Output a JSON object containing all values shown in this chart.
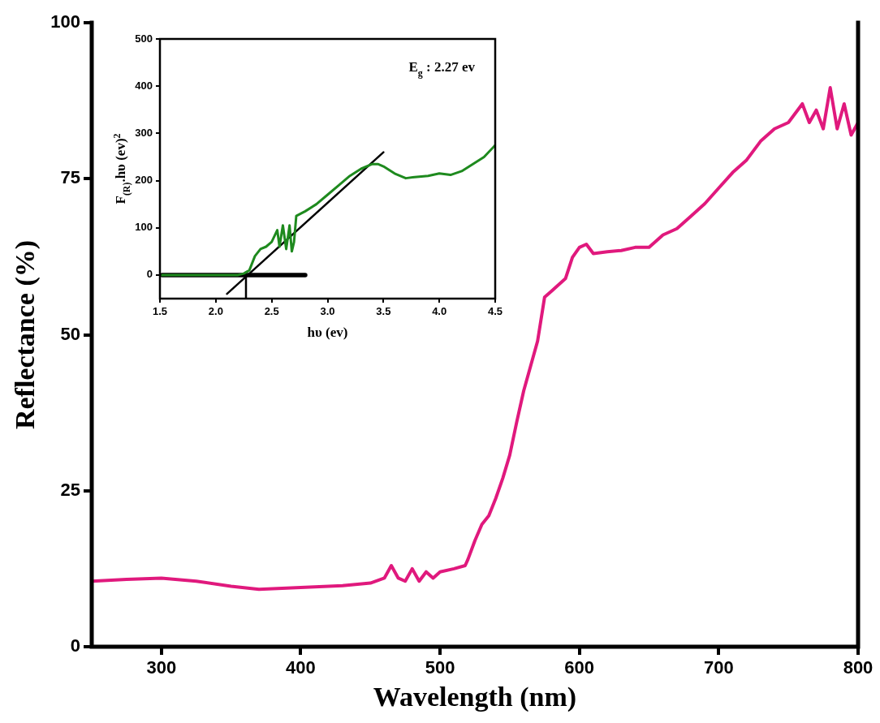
{
  "chart_data": [
    {
      "type": "line",
      "xlabel": "Wavelength (nm)",
      "ylabel": "Reflectance (%)",
      "xlim": [
        250,
        800
      ],
      "xticks": [
        300,
        400,
        500,
        600,
        700,
        800
      ],
      "ylim": [
        0,
        100
      ],
      "yticks": [
        0,
        25,
        50,
        75,
        100
      ],
      "x": [
        250,
        275,
        300,
        325,
        350,
        370,
        400,
        430,
        450,
        460,
        465,
        470,
        475,
        480,
        485,
        490,
        495,
        500,
        510,
        518,
        520,
        525,
        530,
        535,
        540,
        545,
        550,
        555,
        560,
        565,
        570,
        575,
        580,
        590,
        595,
        600,
        605,
        610,
        620,
        630,
        640,
        650,
        660,
        670,
        680,
        690,
        700,
        710,
        720,
        730,
        740,
        750,
        760,
        765,
        770,
        775,
        780,
        785,
        790,
        795,
        800
      ],
      "series": [
        {
          "color": "#e0197d",
          "values": [
            10.5,
            10.8,
            11,
            10.5,
            9.7,
            9.2,
            9.5,
            9.8,
            10.2,
            11,
            13,
            11,
            10.5,
            12.5,
            10.5,
            12,
            11,
            12,
            12.5,
            13,
            14,
            17,
            19.6,
            21,
            23.8,
            27,
            30.7,
            36,
            41,
            45,
            49,
            56,
            57,
            59,
            62.4,
            64,
            64.5,
            63,
            63.3,
            63.5,
            64,
            64,
            66,
            67,
            69,
            71,
            73.5,
            76,
            78,
            81,
            83,
            84,
            87,
            84,
            86,
            83,
            89.6,
            83,
            87,
            82,
            84
          ]
        }
      ]
    },
    {
      "type": "line",
      "xlabel": "hυ (ev)",
      "ylabel": "F$_{(R)}$.hυ (ev)$^{2}$",
      "annotations": [
        "E$_{g}$ : 2.27 ev"
      ],
      "xlim": [
        1.5,
        4.5
      ],
      "xticks": [
        {
          "value": 1.5,
          "label": "1.5"
        },
        {
          "value": 2,
          "label": "2.0"
        },
        {
          "value": 2.5,
          "label": "2.5"
        },
        {
          "value": 3,
          "label": "3.0"
        },
        {
          "value": 3.5,
          "label": "3.5"
        },
        {
          "value": 4,
          "label": "4.0"
        },
        {
          "value": 4.5,
          "label": "4.5"
        }
      ],
      "ylim": [
        -50,
        500
      ],
      "yticks": [
        0,
        100,
        200,
        300,
        400,
        500
      ],
      "series": [
        {
          "color": "#1e8a1e",
          "x": [
            1.52,
            1.8,
            2.0,
            2.2,
            2.25,
            2.3,
            2.35,
            2.4,
            2.45,
            2.5,
            2.55,
            2.57,
            2.6,
            2.63,
            2.66,
            2.68,
            2.7,
            2.72,
            2.8,
            2.9,
            3.0,
            3.1,
            3.2,
            3.3,
            3.4,
            3.45,
            3.5,
            3.6,
            3.7,
            3.8,
            3.9,
            4.0,
            4.1,
            4.2,
            4.3,
            4.4,
            4.5
          ],
          "values": [
            0,
            0,
            0,
            0,
            3,
            10,
            40,
            55,
            60,
            70,
            95,
            60,
            105,
            55,
            105,
            50,
            70,
            125,
            135,
            150,
            170,
            190,
            210,
            225,
            235,
            235,
            230,
            215,
            205,
            208,
            210,
            215,
            212,
            220,
            235,
            250,
            275
          ]
        },
        {
          "color": "#000000",
          "x": [
            2.1,
            3.5
          ],
          "values": [
            -40,
            260
          ]
        },
        {
          "color": "#000000",
          "x": [
            1.52,
            2.8
          ],
          "values": [
            0,
            0
          ]
        },
        {
          "color": "#000000",
          "x": [
            2.27,
            2.27
          ],
          "values": [
            0,
            -50
          ]
        }
      ]
    }
  ]
}
